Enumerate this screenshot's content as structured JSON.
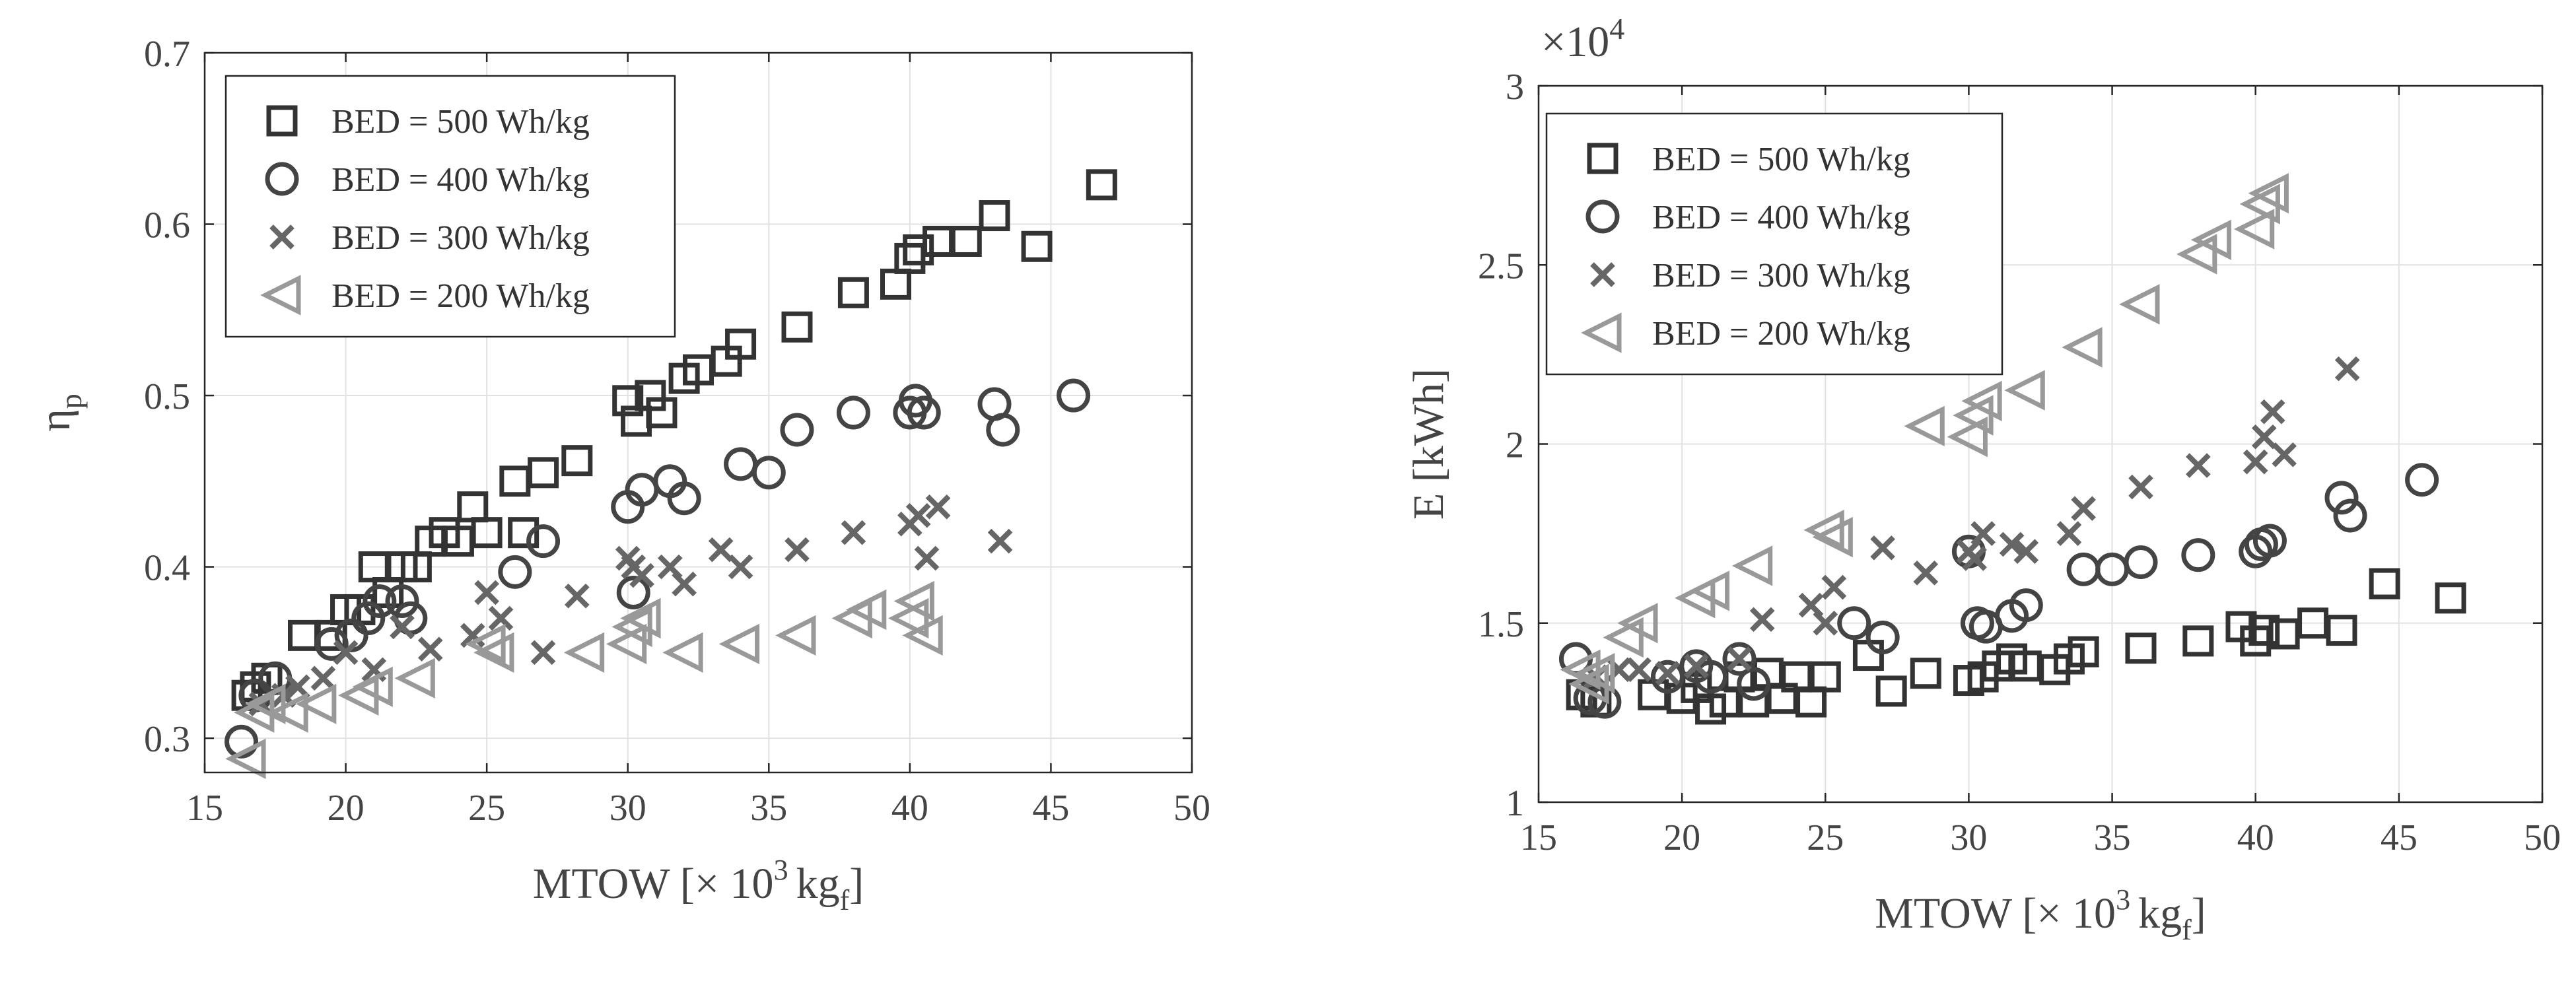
{
  "chart_data": [
    {
      "type": "scatter",
      "xlabel": "MTOW [× 10",
      "xlabel_exp": "3",
      "xlabel_unit": "kg",
      "xlabel_sub": "f",
      "xlabel_close": "]",
      "ylabel": "η",
      "ylabel_sub": "p",
      "xlim": [
        15,
        50
      ],
      "ylim": [
        0.28,
        0.7
      ],
      "xticks": [
        15,
        20,
        25,
        30,
        35,
        40,
        45,
        50
      ],
      "xtick_labels": [
        "15",
        "20",
        "25",
        "30",
        "35",
        "40",
        "45",
        "50"
      ],
      "yticks": [
        0.3,
        0.4,
        0.5,
        0.6,
        0.7
      ],
      "ytick_labels": [
        "0.3",
        "0.4",
        "0.5",
        "0.6",
        "0.7"
      ],
      "grid": true,
      "legend_position": "top-left",
      "series": [
        {
          "name": "BED = 500 Wh/kg",
          "marker": "square",
          "color": "#333333",
          "x": [
            16.5,
            16.8,
            17.2,
            18.5,
            19.5,
            20,
            20.5,
            21,
            21.5,
            22,
            22.5,
            23,
            23.5,
            24,
            24.5,
            25,
            26,
            26.3,
            27,
            28.2,
            30,
            30.3,
            30.8,
            31.2,
            32,
            32.5,
            33.5,
            34,
            36,
            38,
            39.5,
            40,
            40.3,
            41,
            42,
            43,
            44.5,
            46.8
          ],
          "y": [
            0.325,
            0.33,
            0.335,
            0.36,
            0.36,
            0.375,
            0.375,
            0.4,
            0.385,
            0.4,
            0.4,
            0.415,
            0.42,
            0.415,
            0.435,
            0.42,
            0.45,
            0.42,
            0.455,
            0.462,
            0.497,
            0.485,
            0.5,
            0.49,
            0.51,
            0.515,
            0.52,
            0.53,
            0.54,
            0.56,
            0.565,
            0.58,
            0.585,
            0.59,
            0.59,
            0.605,
            0.587,
            0.623
          ]
        },
        {
          "name": "BED = 400 Wh/kg",
          "marker": "circle",
          "color": "#444444",
          "x": [
            16.3,
            16.8,
            17.5,
            19.5,
            20.2,
            20.8,
            21.2,
            22,
            22.3,
            26,
            27,
            30,
            30.2,
            30.5,
            31.5,
            32,
            34,
            35,
            36,
            38,
            40,
            40.2,
            40.5,
            43,
            43.3,
            45.8
          ],
          "y": [
            0.298,
            0.325,
            0.335,
            0.355,
            0.36,
            0.37,
            0.38,
            0.38,
            0.37,
            0.397,
            0.415,
            0.435,
            0.385,
            0.445,
            0.45,
            0.44,
            0.46,
            0.455,
            0.48,
            0.49,
            0.49,
            0.497,
            0.49,
            0.495,
            0.48,
            0.5
          ]
        },
        {
          "name": "BED = 300 Wh/kg",
          "marker": "x",
          "color": "#666666",
          "x": [
            17,
            17.8,
            18.3,
            19.2,
            20,
            21,
            22,
            23,
            24.5,
            25,
            25.5,
            27,
            28.2,
            30,
            30.2,
            30.5,
            31.5,
            32,
            33.3,
            34,
            36,
            38,
            40,
            40.3,
            40.6,
            41,
            43.2
          ],
          "y": [
            0.32,
            0.325,
            0.33,
            0.335,
            0.35,
            0.34,
            0.365,
            0.352,
            0.36,
            0.385,
            0.37,
            0.35,
            0.383,
            0.405,
            0.4,
            0.395,
            0.4,
            0.39,
            0.41,
            0.4,
            0.41,
            0.42,
            0.425,
            0.43,
            0.405,
            0.435,
            0.415
          ]
        },
        {
          "name": "BED = 200 Wh/kg",
          "marker": "triangle-left",
          "color": "#999999",
          "x": [
            16.5,
            16.8,
            17.2,
            18,
            19,
            20.5,
            21,
            22.5,
            25,
            25.3,
            28.5,
            30,
            30.2,
            30.5,
            32,
            34,
            36,
            38,
            38.5,
            40,
            40.2,
            40.5
          ],
          "y": [
            0.288,
            0.315,
            0.32,
            0.315,
            0.32,
            0.325,
            0.33,
            0.335,
            0.355,
            0.35,
            0.35,
            0.355,
            0.365,
            0.37,
            0.35,
            0.355,
            0.36,
            0.37,
            0.375,
            0.37,
            0.38,
            0.36
          ]
        }
      ]
    },
    {
      "type": "scatter",
      "multiplier": "×10",
      "multiplier_exp": "4",
      "xlabel": "MTOW [× 10",
      "xlabel_exp": "3",
      "xlabel_unit": "kg",
      "xlabel_sub": "f",
      "xlabel_close": "]",
      "ylabel": "E [kWh]",
      "xlim": [
        15,
        50
      ],
      "ylim": [
        1,
        3
      ],
      "xticks": [
        15,
        20,
        25,
        30,
        35,
        40,
        45,
        50
      ],
      "xtick_labels": [
        "15",
        "20",
        "25",
        "30",
        "35",
        "40",
        "45",
        "50"
      ],
      "yticks": [
        1,
        1.5,
        2,
        2.5,
        3
      ],
      "ytick_labels": [
        "1",
        "1.5",
        "2",
        "2.5",
        "3"
      ],
      "grid": true,
      "legend_position": "top-left",
      "series": [
        {
          "name": "BED = 500 Wh/kg",
          "marker": "square",
          "color": "#333333",
          "x": [
            16.5,
            17,
            19,
            20,
            20.5,
            21,
            21.5,
            22,
            22.5,
            23,
            23.5,
            24,
            24.5,
            25,
            26.5,
            27.3,
            28.5,
            30,
            30.5,
            31,
            31.5,
            32,
            33,
            33.5,
            34,
            36,
            38,
            39.5,
            40,
            40.3,
            41,
            42,
            43,
            44.5,
            46.8
          ],
          "y": [
            1.3,
            1.28,
            1.3,
            1.29,
            1.32,
            1.26,
            1.28,
            1.35,
            1.28,
            1.36,
            1.29,
            1.35,
            1.28,
            1.35,
            1.41,
            1.31,
            1.36,
            1.34,
            1.35,
            1.38,
            1.4,
            1.38,
            1.37,
            1.4,
            1.42,
            1.43,
            1.45,
            1.49,
            1.45,
            1.48,
            1.47,
            1.5,
            1.48,
            1.61,
            1.57
          ]
        },
        {
          "name": "BED = 400 Wh/kg",
          "marker": "circle",
          "color": "#444444",
          "x": [
            16.3,
            16.8,
            17.3,
            19.5,
            20.5,
            21,
            22,
            22.5,
            26,
            27,
            30,
            30.3,
            30.6,
            31.5,
            32,
            34,
            35,
            36,
            38,
            40,
            40.2,
            40.5,
            43,
            43.3,
            45.8
          ],
          "y": [
            1.4,
            1.29,
            1.28,
            1.35,
            1.38,
            1.35,
            1.4,
            1.33,
            1.5,
            1.46,
            1.7,
            1.5,
            1.49,
            1.52,
            1.55,
            1.65,
            1.65,
            1.67,
            1.69,
            1.7,
            1.72,
            1.73,
            1.85,
            1.8,
            1.9
          ]
        },
        {
          "name": "BED = 300 Wh/kg",
          "marker": "x",
          "color": "#666666",
          "x": [
            17,
            17.8,
            18.5,
            19.5,
            20.5,
            22,
            22.8,
            24.5,
            25,
            25.3,
            27,
            28.5,
            30,
            30.2,
            30.5,
            31.5,
            32,
            33.5,
            34,
            36,
            38,
            40,
            40.3,
            40.6,
            41,
            43.2
          ],
          "y": [
            1.35,
            1.37,
            1.37,
            1.36,
            1.38,
            1.4,
            1.51,
            1.55,
            1.5,
            1.6,
            1.71,
            1.64,
            1.7,
            1.68,
            1.75,
            1.72,
            1.7,
            1.75,
            1.82,
            1.88,
            1.94,
            1.95,
            2.02,
            2.09,
            1.97,
            2.21
          ]
        },
        {
          "name": "BED = 200 Wh/kg",
          "marker": "triangle-left",
          "color": "#999999",
          "x": [
            16.5,
            16.8,
            17,
            18,
            18.5,
            20.5,
            21,
            22.5,
            25,
            25.3,
            28.5,
            30,
            30.2,
            30.5,
            32,
            34,
            36,
            38,
            38.5,
            40,
            40.2,
            40.5
          ],
          "y": [
            1.37,
            1.33,
            1.36,
            1.46,
            1.5,
            1.57,
            1.59,
            1.66,
            1.76,
            1.74,
            2.05,
            2.02,
            2.08,
            2.12,
            2.15,
            2.27,
            2.39,
            2.53,
            2.57,
            2.6,
            2.67,
            2.7
          ]
        }
      ]
    }
  ]
}
